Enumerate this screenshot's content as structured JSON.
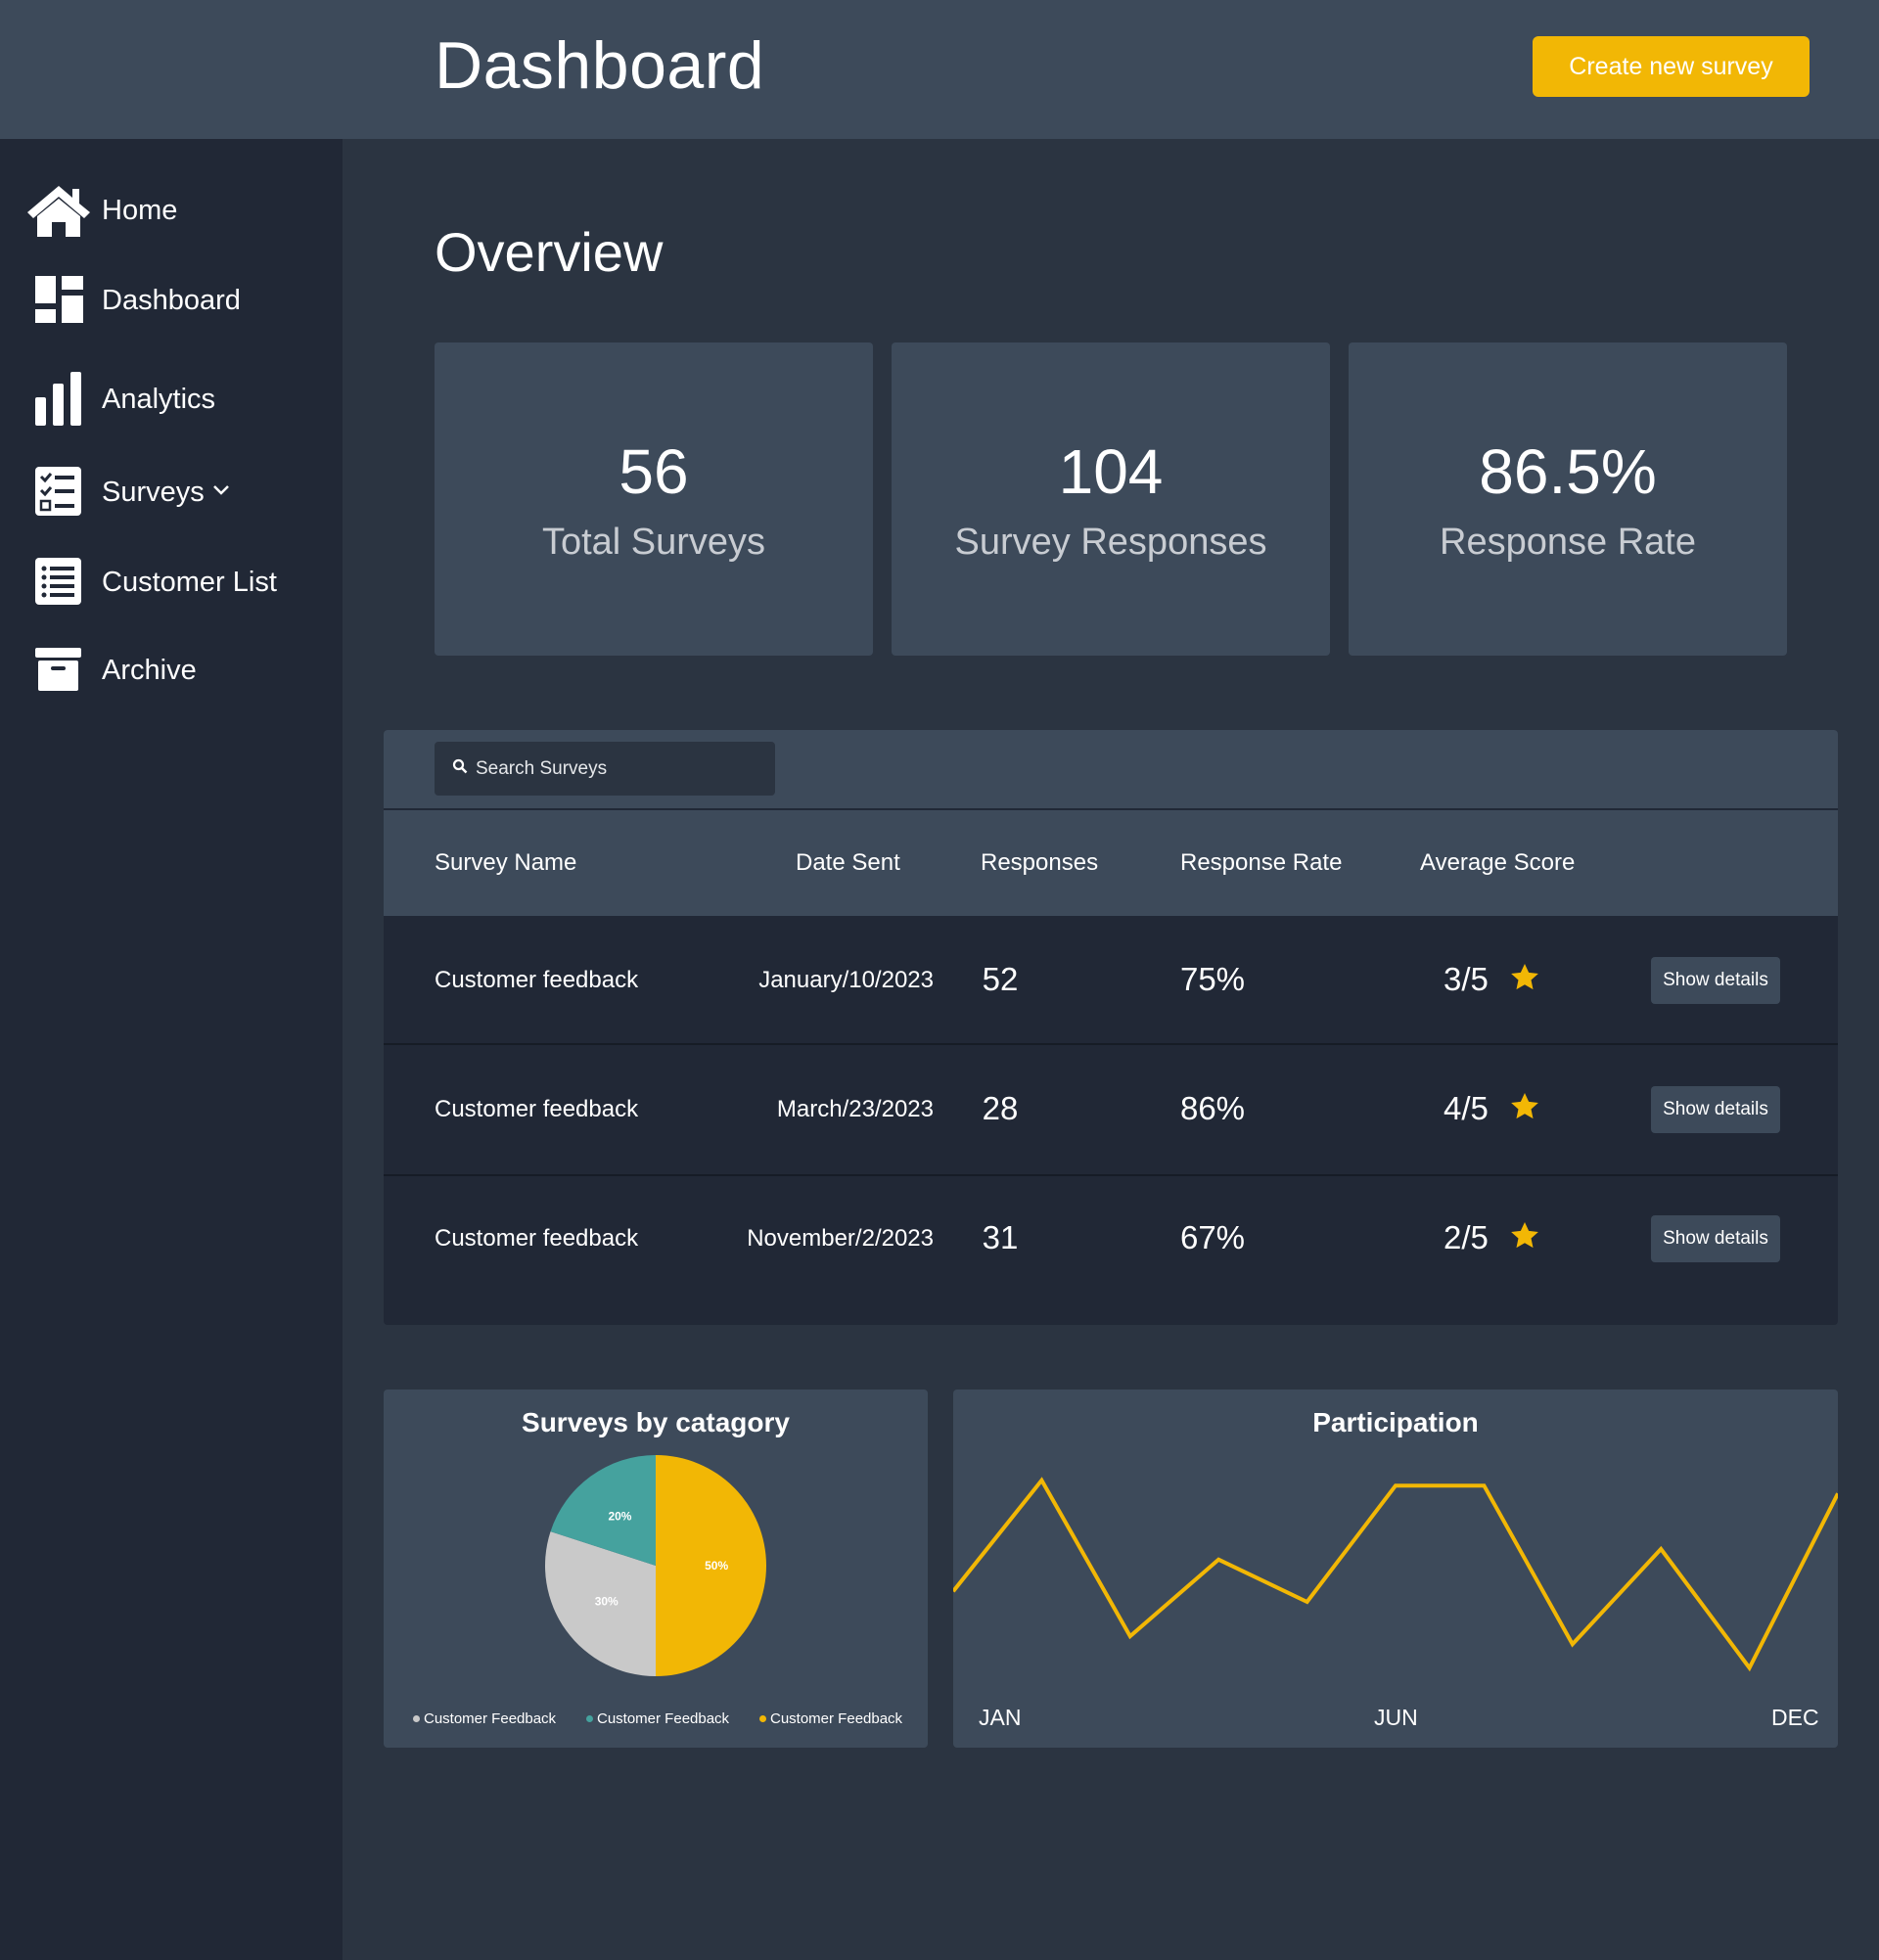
{
  "header": {
    "title": "Dashboard",
    "create_button": "Create new survey"
  },
  "sidebar": {
    "items": [
      {
        "label": "Home",
        "icon": "home-icon"
      },
      {
        "label": "Dashboard",
        "icon": "dashboard-icon"
      },
      {
        "label": "Analytics",
        "icon": "bar-chart-icon"
      },
      {
        "label": "Surveys",
        "icon": "checklist-icon"
      },
      {
        "label": "Customer List",
        "icon": "list-icon"
      },
      {
        "label": "Archive",
        "icon": "archive-icon"
      }
    ]
  },
  "overview": {
    "title": "Overview",
    "stats": [
      {
        "value": "56",
        "label": "Total Surveys"
      },
      {
        "value": "104",
        "label": "Survey Responses"
      },
      {
        "value": "86.5%",
        "label": "Response Rate"
      }
    ]
  },
  "table": {
    "search_placeholder": "Search Surveys",
    "columns": [
      "Survey Name",
      "Date Sent",
      "Responses",
      "Response Rate",
      "Average Score"
    ],
    "details_label": "Show details",
    "rows": [
      {
        "name": "Customer feedback",
        "date": "January/10/2023",
        "responses": "52",
        "rate": "75%",
        "score": "3/5"
      },
      {
        "name": "Customer feedback",
        "date": "March/23/2023",
        "responses": "28",
        "rate": "86%",
        "score": "4/5"
      },
      {
        "name": "Customer feedback",
        "date": "November/2/2023",
        "responses": "31",
        "rate": "67%",
        "score": "2/5"
      }
    ]
  },
  "colors": {
    "accent": "#f2b705",
    "panel": "#3d4a5a",
    "sidebar": "#212836",
    "background": "#2b3441",
    "teal": "#45a29e",
    "gray": "#c9c9c9"
  },
  "chart_data": [
    {
      "type": "pie",
      "title": "Surveys by catagory",
      "slices": [
        {
          "label": "Customer Feedback",
          "value": 50,
          "display": "50%",
          "color": "#f2b705"
        },
        {
          "label": "Customer Feedback",
          "value": 30,
          "display": "30%",
          "color": "#c9c9c9"
        },
        {
          "label": "Customer Feedback",
          "value": 20,
          "display": "20%",
          "color": "#45a29e"
        }
      ],
      "legend": [
        {
          "label": "Customer Feedback",
          "color": "#c9c9c9"
        },
        {
          "label": "Customer Feedback",
          "color": "#45a29e"
        },
        {
          "label": "Customer Feedback",
          "color": "#f2b705"
        }
      ],
      "legend_position": "bottom"
    },
    {
      "type": "line",
      "title": "Participation",
      "x_tick_labels": [
        "JAN",
        "JUN",
        "DEC"
      ],
      "values": [
        44,
        86,
        27,
        56,
        40,
        84,
        84,
        24,
        60,
        15,
        81
      ],
      "ylim": [
        0,
        100
      ],
      "grid": false,
      "color": "#f2b705"
    }
  ]
}
